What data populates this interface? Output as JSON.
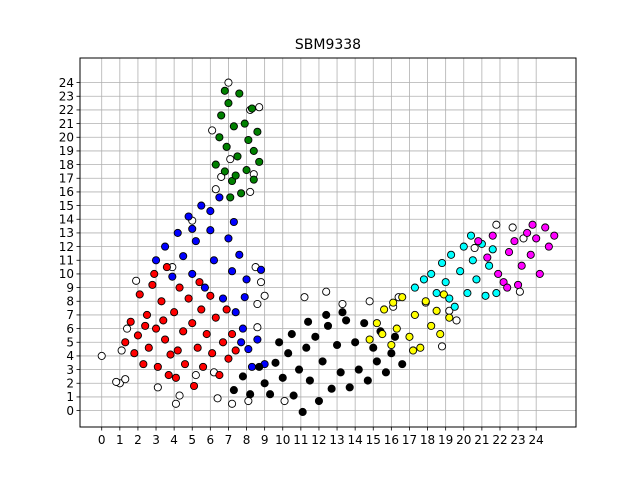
{
  "chart_data": {
    "type": "scatter",
    "title": "SBM9338",
    "xlabel": "",
    "ylabel": "",
    "xlim": [
      -1.2,
      26.2
    ],
    "ylim": [
      -1.2,
      25.8
    ],
    "x_ticks": [
      0,
      1,
      2,
      3,
      4,
      5,
      6,
      7,
      8,
      9,
      10,
      11,
      12,
      13,
      14,
      15,
      16,
      17,
      18,
      19,
      20,
      21,
      22,
      23,
      24
    ],
    "y_ticks": [
      0,
      1,
      2,
      3,
      4,
      5,
      6,
      7,
      8,
      9,
      10,
      11,
      12,
      13,
      14,
      15,
      16,
      17,
      18,
      19,
      20,
      21,
      22,
      23,
      24
    ],
    "grid": true,
    "legend": "none",
    "series": [
      {
        "color": "#ffffff",
        "points": [
          [
            0,
            4
          ],
          [
            1,
            2
          ],
          [
            0.8,
            2.1
          ],
          [
            1.3,
            2.3
          ],
          [
            1.1,
            4.4
          ],
          [
            1.4,
            6.0
          ],
          [
            1.9,
            9.5
          ],
          [
            3.1,
            1.7
          ],
          [
            4.1,
            0.5
          ],
          [
            4.3,
            1.1
          ],
          [
            6.4,
            0.9
          ],
          [
            7.2,
            0.5
          ],
          [
            8.1,
            0.7
          ],
          [
            8.6,
            7.8
          ],
          [
            9.0,
            8.4
          ],
          [
            10.1,
            0.7
          ],
          [
            11.2,
            8.3
          ],
          [
            12.4,
            8.7
          ],
          [
            13.3,
            7.8
          ],
          [
            14.8,
            8.0
          ],
          [
            16.1,
            7.6
          ],
          [
            16.4,
            8.3
          ],
          [
            17.9,
            7.9
          ],
          [
            18.8,
            4.7
          ],
          [
            19.2,
            7.3
          ],
          [
            19.6,
            6.6
          ],
          [
            20.6,
            11.9
          ],
          [
            21.8,
            13.6
          ],
          [
            22.7,
            13.4
          ],
          [
            23.1,
            8.7
          ],
          [
            23.3,
            12.6
          ],
          [
            7.1,
            18.4
          ],
          [
            6.1,
            20.5
          ],
          [
            6.6,
            17.1
          ],
          [
            7.0,
            24.0
          ],
          [
            8.2,
            22.0
          ],
          [
            8.7,
            22.2
          ],
          [
            8.4,
            17.3
          ],
          [
            8.2,
            16.0
          ],
          [
            6.3,
            16.2
          ],
          [
            5.0,
            13.9
          ],
          [
            3.9,
            10.5
          ],
          [
            8.8,
            9.4
          ],
          [
            8.5,
            10.5
          ],
          [
            8.6,
            6.1
          ],
          [
            6.2,
            2.8
          ],
          [
            5.2,
            2.6
          ]
        ]
      },
      {
        "color": "#ff0000",
        "points": [
          [
            1.3,
            5
          ],
          [
            1.6,
            6.5
          ],
          [
            1.8,
            4.2
          ],
          [
            2,
            5.5
          ],
          [
            2.1,
            8.5
          ],
          [
            2.3,
            3.4
          ],
          [
            2.5,
            7
          ],
          [
            2.6,
            4.6
          ],
          [
            2.8,
            9.2
          ],
          [
            3,
            6
          ],
          [
            3.1,
            3.2
          ],
          [
            3.3,
            8
          ],
          [
            3.5,
            5.2
          ],
          [
            3.6,
            10.5
          ],
          [
            3.8,
            4.1
          ],
          [
            4,
            7.2
          ],
          [
            4.1,
            2.4
          ],
          [
            4.3,
            9
          ],
          [
            4.5,
            5.8
          ],
          [
            4.6,
            3.4
          ],
          [
            4.8,
            8.2
          ],
          [
            5,
            6.4
          ],
          [
            5.1,
            1.8
          ],
          [
            5.3,
            4.6
          ],
          [
            5.5,
            7.4
          ],
          [
            5.6,
            3.2
          ],
          [
            5.8,
            5.6
          ],
          [
            6,
            8.4
          ],
          [
            6.1,
            4.2
          ],
          [
            6.3,
            6.8
          ],
          [
            6.5,
            2.6
          ],
          [
            6.7,
            5
          ],
          [
            6.9,
            7.4
          ],
          [
            7,
            3.8
          ],
          [
            7.2,
            5.6
          ],
          [
            7.4,
            4.4
          ],
          [
            3.4,
            6.6
          ],
          [
            2.4,
            6.2
          ],
          [
            4.2,
            4.4
          ],
          [
            5.4,
            9.4
          ],
          [
            2.9,
            10
          ],
          [
            3.7,
            2.6
          ]
        ]
      },
      {
        "color": "#0000ff",
        "points": [
          [
            3,
            11
          ],
          [
            3.5,
            12
          ],
          [
            3.9,
            9.8
          ],
          [
            4.2,
            13
          ],
          [
            4.5,
            11.3
          ],
          [
            4.8,
            14.2
          ],
          [
            5,
            10
          ],
          [
            5.2,
            12.4
          ],
          [
            5.5,
            15
          ],
          [
            5.7,
            9
          ],
          [
            6,
            13.2
          ],
          [
            6.2,
            11
          ],
          [
            6.5,
            15.6
          ],
          [
            6.7,
            8.2
          ],
          [
            7,
            12.6
          ],
          [
            7.2,
            10.2
          ],
          [
            7.4,
            7.2
          ],
          [
            7.6,
            11.4
          ],
          [
            7.8,
            6
          ],
          [
            8,
            9.6
          ],
          [
            8.1,
            4.5
          ],
          [
            8.3,
            3.2
          ],
          [
            8.6,
            5.2
          ],
          [
            9,
            3.4
          ],
          [
            8.8,
            10.3
          ],
          [
            7.3,
            13.8
          ],
          [
            6,
            14.6
          ],
          [
            5,
            13.3
          ],
          [
            7.9,
            8.3
          ],
          [
            7.7,
            5
          ]
        ]
      },
      {
        "color": "#008000",
        "points": [
          [
            6.3,
            18
          ],
          [
            6.5,
            20
          ],
          [
            6.6,
            21.6
          ],
          [
            6.8,
            17.5
          ],
          [
            6.9,
            19.3
          ],
          [
            7,
            22.5
          ],
          [
            7.2,
            16.8
          ],
          [
            7.3,
            20.8
          ],
          [
            7.5,
            18.6
          ],
          [
            7.6,
            23.2
          ],
          [
            7.7,
            15.9
          ],
          [
            7.9,
            21
          ],
          [
            8,
            17.6
          ],
          [
            8.1,
            19.8
          ],
          [
            8.3,
            22.1
          ],
          [
            8.4,
            16.9
          ],
          [
            8.6,
            20.4
          ],
          [
            8.7,
            18.2
          ],
          [
            7.1,
            15.6
          ],
          [
            6.8,
            23.4
          ],
          [
            8.4,
            19
          ],
          [
            7.4,
            17.2
          ]
        ]
      },
      {
        "color": "#000000",
        "points": [
          [
            7.3,
            1.5
          ],
          [
            7.8,
            2.5
          ],
          [
            8.2,
            1.2
          ],
          [
            8.7,
            3.2
          ],
          [
            9,
            2
          ],
          [
            9.3,
            1.2
          ],
          [
            9.6,
            3.5
          ],
          [
            10,
            2.4
          ],
          [
            10.3,
            4.2
          ],
          [
            10.6,
            1.1
          ],
          [
            10.9,
            3
          ],
          [
            11.1,
            -0.1
          ],
          [
            11.3,
            4.6
          ],
          [
            11.5,
            2.2
          ],
          [
            11.8,
            5.4
          ],
          [
            12,
            0.7
          ],
          [
            12.2,
            3.6
          ],
          [
            12.5,
            6.2
          ],
          [
            12.7,
            1.6
          ],
          [
            13,
            4.8
          ],
          [
            13.2,
            2.8
          ],
          [
            13.5,
            6.6
          ],
          [
            13.7,
            1.7
          ],
          [
            14,
            5
          ],
          [
            14.2,
            3
          ],
          [
            14.5,
            6.4
          ],
          [
            14.7,
            2.2
          ],
          [
            15,
            4.6
          ],
          [
            15.2,
            3.6
          ],
          [
            15.4,
            5.8
          ],
          [
            15.7,
            2.8
          ],
          [
            16,
            4.2
          ],
          [
            16.2,
            5.4
          ],
          [
            16.6,
            3.4
          ],
          [
            12.4,
            7
          ],
          [
            13.3,
            7.2
          ],
          [
            9.8,
            5
          ],
          [
            10.5,
            5.6
          ],
          [
            11.4,
            6.5
          ]
        ]
      },
      {
        "color": "#ffff00",
        "points": [
          [
            14.8,
            5.2
          ],
          [
            15.2,
            6.4
          ],
          [
            15.6,
            7.4
          ],
          [
            16,
            4.8
          ],
          [
            16.3,
            6
          ],
          [
            16.6,
            8.3
          ],
          [
            17,
            5.4
          ],
          [
            17.3,
            7
          ],
          [
            17.6,
            4.6
          ],
          [
            17.9,
            8
          ],
          [
            18.2,
            6.2
          ],
          [
            18.5,
            7.3
          ],
          [
            18.7,
            5.6
          ],
          [
            18.9,
            8.5
          ],
          [
            19.2,
            6.8
          ],
          [
            16.1,
            7.9
          ],
          [
            17.2,
            4.4
          ],
          [
            15.5,
            5.6
          ]
        ]
      },
      {
        "color": "#00ffff",
        "points": [
          [
            17.3,
            9
          ],
          [
            17.8,
            9.6
          ],
          [
            18.2,
            10
          ],
          [
            18.5,
            8.6
          ],
          [
            18.8,
            10.8
          ],
          [
            19,
            9.4
          ],
          [
            19.3,
            11.4
          ],
          [
            19.5,
            7.6
          ],
          [
            19.8,
            10.2
          ],
          [
            20,
            12
          ],
          [
            20.2,
            8.6
          ],
          [
            20.5,
            11
          ],
          [
            20.7,
            9.6
          ],
          [
            21,
            12.2
          ],
          [
            21.2,
            8.4
          ],
          [
            21.4,
            10.6
          ],
          [
            21.6,
            11.8
          ],
          [
            21.8,
            8.6
          ],
          [
            20.4,
            12.8
          ],
          [
            19.2,
            8.2
          ]
        ]
      },
      {
        "color": "#ff00ff",
        "points": [
          [
            20.8,
            12.4
          ],
          [
            21.3,
            11.2
          ],
          [
            21.6,
            12.8
          ],
          [
            21.9,
            10
          ],
          [
            22.2,
            9.4
          ],
          [
            22.5,
            11.6
          ],
          [
            22.8,
            12.4
          ],
          [
            23,
            9.2
          ],
          [
            23.2,
            10.6
          ],
          [
            23.5,
            13
          ],
          [
            23.7,
            11.4
          ],
          [
            24,
            12.6
          ],
          [
            24.2,
            10
          ],
          [
            24.5,
            13.4
          ],
          [
            24.7,
            12
          ],
          [
            25,
            12.8
          ],
          [
            23.8,
            13.6
          ],
          [
            22.4,
            9
          ]
        ]
      }
    ]
  }
}
